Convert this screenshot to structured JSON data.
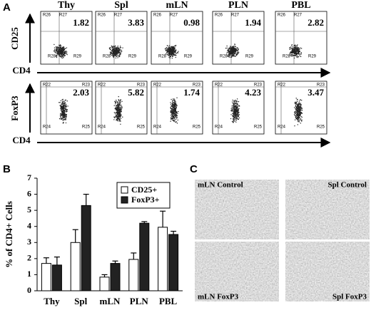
{
  "panel_labels": [
    "A",
    "B",
    "C"
  ],
  "panel_a": {
    "columns": [
      "Thy",
      "Spl",
      "mLN",
      "PLN",
      "PBL"
    ],
    "rows": [
      {
        "y_label": "CD25",
        "x_label": "CD4",
        "values": [
          1.82,
          3.83,
          0.98,
          1.94,
          2.82
        ],
        "gates": [
          "R26",
          "R27",
          "R28",
          "R29"
        ]
      },
      {
        "y_label": "FoxP3",
        "x_label": "CD4",
        "values": [
          2.03,
          5.82,
          1.74,
          4.23,
          3.47
        ],
        "gates": [
          "R22",
          "R23",
          "R24",
          "R25"
        ]
      }
    ]
  },
  "chart_data": {
    "type": "bar",
    "y_label": "% of CD4+ Cells",
    "categories": [
      "Thy",
      "Spl",
      "mLN",
      "PLN",
      "PBL"
    ],
    "series": [
      {
        "name": "CD25+",
        "color": "#ffffff",
        "values": [
          1.7,
          3.0,
          0.85,
          1.95,
          3.95
        ],
        "errors": [
          0.35,
          0.8,
          0.15,
          0.4,
          1.0
        ]
      },
      {
        "name": "FoxP3+",
        "color": "#222222",
        "values": [
          1.6,
          5.3,
          1.7,
          4.2,
          3.5
        ],
        "errors": [
          0.5,
          0.7,
          0.15,
          0.1,
          0.2
        ]
      }
    ],
    "ylim": [
      0,
      7
    ],
    "yticks": [
      0,
      1,
      2,
      3,
      4,
      5,
      6,
      7
    ],
    "grid": false,
    "legend": "upper right"
  },
  "panel_c": {
    "images": [
      "mLN Control",
      "Spl Control",
      "mLN FoxP3",
      "Spl FoxP3"
    ]
  }
}
